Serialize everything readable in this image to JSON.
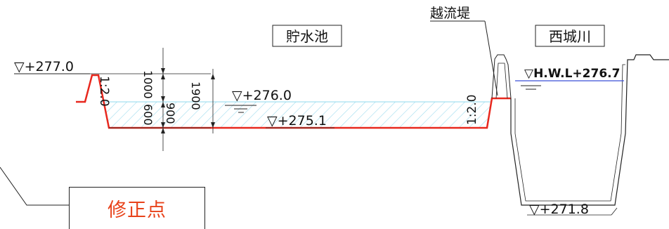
{
  "labels": {
    "reservoir": "貯水池",
    "river": "西城川",
    "overflow_levee": "越流堤",
    "elev_levee_top": "▽+277.0",
    "elev_water": "▽+276.0",
    "elev_bottom": "▽+275.1",
    "elev_hwl": "▽H.W.L+276.7",
    "elev_river_bottom": "▽+271.8",
    "slope_left": "1:2.0",
    "slope_right": "1:2.0",
    "dim_1000": "1000",
    "dim_900": "900",
    "dim_1900": "1900",
    "dim_600": "600"
  },
  "note": {
    "text": "修正点"
  },
  "colors": {
    "red_line": "#e8281e",
    "blue_line": "#3a4fd6",
    "hatch": "#7fd4ec",
    "note_text": "#e8421a"
  }
}
